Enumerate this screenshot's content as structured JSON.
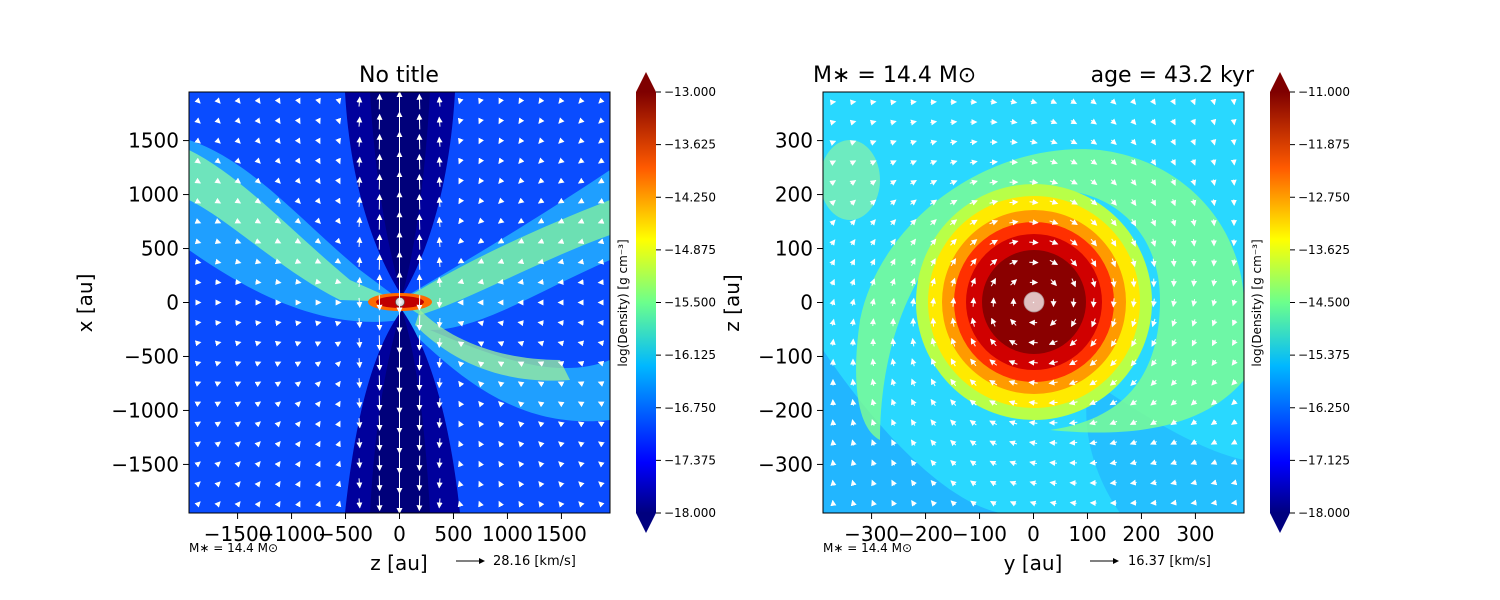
{
  "chart_data": [
    {
      "type": "heatmap",
      "title": "No title",
      "xlabel": "z [au]",
      "ylabel": "x [au]",
      "xlim": [
        -1950,
        1950
      ],
      "ylim": [
        -1950,
        1950
      ],
      "x_ticks": [
        -1500,
        -1000,
        -500,
        0,
        500,
        1000,
        1500
      ],
      "y_ticks": [
        -1500,
        -1000,
        -500,
        0,
        500,
        1000,
        1500
      ],
      "x_tick_labels": [
        "−1500",
        "−1000",
        "−500",
        "0",
        "500",
        "1000",
        "1500"
      ],
      "y_tick_labels": [
        "−1500",
        "−1000",
        "−500",
        "0",
        "500",
        "1000",
        "1500"
      ],
      "colorbar": {
        "label": "log(Density) [g cm⁻³]",
        "range": [
          -18.0,
          -13.0
        ],
        "ticks": [
          "−13.000",
          "−13.625",
          "−14.250",
          "−14.875",
          "−15.500",
          "−16.125",
          "−16.750",
          "−17.375",
          "−18.000"
        ],
        "colormap": "jet"
      },
      "annotation": "M∗ = 14.4 M⊙",
      "quiver_key": "28.16 [km/s]",
      "features": "bipolar low-density outflow cavity along vertical axis; dense flattened disk at origin"
    },
    {
      "type": "heatmap",
      "title_left": "M∗ = 14.4 M⊙",
      "title_right": "age = 43.2 kyr",
      "xlabel": "y [au]",
      "ylabel": "z [au]",
      "xlim": [
        -390,
        390
      ],
      "ylim": [
        -390,
        390
      ],
      "x_ticks": [
        -300,
        -200,
        -100,
        0,
        100,
        200,
        300
      ],
      "y_ticks": [
        -300,
        -200,
        -100,
        0,
        100,
        200,
        300
      ],
      "x_tick_labels": [
        "−300",
        "−200",
        "−100",
        "0",
        "100",
        "200",
        "300"
      ],
      "y_tick_labels": [
        "−300",
        "−200",
        "−100",
        "0",
        "100",
        "200",
        "300"
      ],
      "colorbar": {
        "label": "log(Density) [g cm⁻³]",
        "range": [
          -18.0,
          -11.0
        ],
        "ticks": [
          "−11.000",
          "−11.875",
          "−12.750",
          "−13.625",
          "−14.500",
          "−15.375",
          "−16.250",
          "−17.125",
          "−18.000"
        ],
        "colormap": "jet"
      },
      "annotation": "M∗ = 14.4 M⊙",
      "quiver_key": "16.37 [km/s]",
      "features": "counter-clockwise rotating dense disk with spiral arms"
    }
  ]
}
